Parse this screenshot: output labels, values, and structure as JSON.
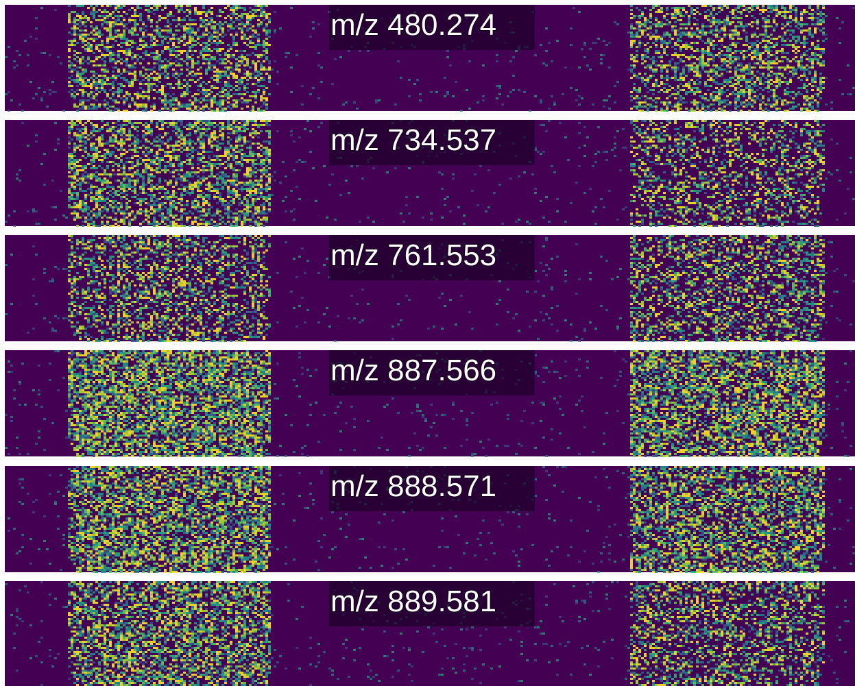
{
  "panels": [
    {
      "label": "m/z 480.274"
    },
    {
      "label": "m/z 734.537"
    },
    {
      "label": "m/z 761.553"
    },
    {
      "label": "m/z 887.566"
    },
    {
      "label": "m/z 888.571"
    },
    {
      "label": "m/z 889.581"
    }
  ]
}
